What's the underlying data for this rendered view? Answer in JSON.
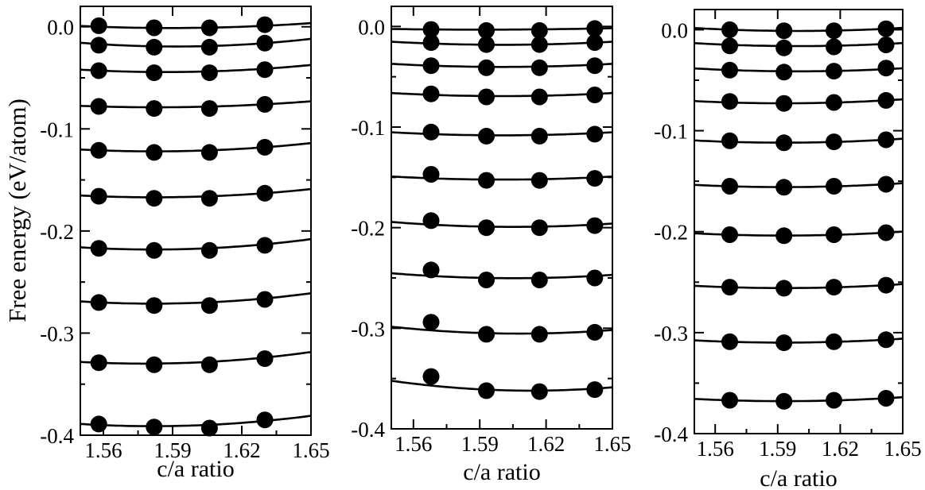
{
  "ylabel": "Free energy (eV/atom)",
  "panels": [
    {
      "xlabel": "c/a ratio",
      "xlim": [
        1.55,
        1.65
      ],
      "ylim": [
        -0.4,
        0.02
      ],
      "x_ticks": [
        1.56,
        1.59,
        1.62,
        1.65
      ],
      "x_tick_labels": [
        "1.56",
        "1.59",
        "1.62",
        "1.65"
      ],
      "y_ticks": [
        0.0,
        -0.1,
        -0.2,
        -0.3,
        -0.4
      ],
      "y_tick_labels": [
        "0.0",
        "-0.1",
        "-0.2",
        "-0.3",
        "-0.4"
      ]
    },
    {
      "xlabel": "c/a ratio",
      "xlim": [
        1.55,
        1.65
      ],
      "ylim": [
        -0.4,
        0.02
      ],
      "x_ticks": [
        1.56,
        1.59,
        1.62,
        1.65
      ],
      "x_tick_labels": [
        "1.56",
        "1.59",
        "1.62",
        "1.65"
      ],
      "y_ticks": [
        0.0,
        -0.1,
        -0.2,
        -0.3,
        -0.4
      ],
      "y_tick_labels": [
        "0.0",
        "-0.1",
        "-0.2",
        "-0.3",
        "-0.4"
      ]
    },
    {
      "xlabel": "c/a ratio",
      "xlim": [
        1.55,
        1.65
      ],
      "ylim": [
        -0.4,
        0.02
      ],
      "x_ticks": [
        1.56,
        1.59,
        1.62,
        1.65
      ],
      "x_tick_labels": [
        "1.56",
        "1.59",
        "1.62",
        "1.65"
      ],
      "y_ticks": [
        0.0,
        -0.1,
        -0.2,
        -0.3,
        -0.4
      ],
      "y_tick_labels": [
        "0.0",
        "-0.1",
        "-0.2",
        "-0.3",
        "-0.4"
      ]
    }
  ],
  "chart_data": [
    {
      "type": "scatter",
      "xlabel": "c/a ratio",
      "ylabel": "Free energy (eV/atom)",
      "xlim": [
        1.55,
        1.65
      ],
      "ylim": [
        -0.4,
        0.02
      ],
      "grid": false,
      "x": [
        1.558,
        1.582,
        1.606,
        1.63
      ],
      "series": [
        {
          "values": [
            0.001,
            -0.001,
            -0.001,
            0.002
          ],
          "fit": [
            0.0,
            -0.001,
            -0.001,
            0.001
          ]
        },
        {
          "values": [
            -0.018,
            -0.02,
            -0.02,
            -0.016
          ],
          "fit": [
            -0.017,
            -0.019,
            -0.019,
            -0.016
          ]
        },
        {
          "values": [
            -0.043,
            -0.045,
            -0.045,
            -0.042
          ],
          "fit": [
            -0.043,
            -0.044,
            -0.044,
            -0.041
          ]
        },
        {
          "values": [
            -0.078,
            -0.08,
            -0.08,
            -0.076
          ],
          "fit": [
            -0.078,
            -0.079,
            -0.078,
            -0.076
          ]
        },
        {
          "values": [
            -0.121,
            -0.123,
            -0.123,
            -0.118
          ],
          "fit": [
            -0.121,
            -0.122,
            -0.121,
            -0.118
          ]
        },
        {
          "values": [
            -0.166,
            -0.168,
            -0.168,
            -0.163
          ],
          "fit": [
            -0.166,
            -0.167,
            -0.166,
            -0.163
          ]
        },
        {
          "values": [
            -0.217,
            -0.219,
            -0.219,
            -0.214
          ],
          "fit": [
            -0.217,
            -0.218,
            -0.217,
            -0.213
          ]
        },
        {
          "values": [
            -0.27,
            -0.273,
            -0.273,
            -0.267
          ],
          "fit": [
            -0.27,
            -0.271,
            -0.27,
            -0.266
          ]
        },
        {
          "values": [
            -0.329,
            -0.331,
            -0.331,
            -0.325
          ],
          "fit": [
            -0.329,
            -0.33,
            -0.328,
            -0.324
          ]
        },
        {
          "values": [
            -0.389,
            -0.392,
            -0.393,
            -0.385
          ],
          "fit": [
            -0.39,
            -0.391,
            -0.39,
            -0.386
          ]
        }
      ]
    },
    {
      "type": "scatter",
      "xlabel": "c/a ratio",
      "ylabel": "",
      "xlim": [
        1.55,
        1.65
      ],
      "ylim": [
        -0.4,
        0.02
      ],
      "grid": false,
      "x": [
        1.568,
        1.593,
        1.617,
        1.642
      ],
      "series": [
        {
          "values": [
            -0.003,
            -0.004,
            -0.004,
            -0.002
          ],
          "fit": [
            -0.003,
            -0.003,
            -0.003,
            -0.002
          ]
        },
        {
          "values": [
            -0.016,
            -0.018,
            -0.018,
            -0.016
          ],
          "fit": [
            -0.017,
            -0.018,
            -0.018,
            -0.016
          ]
        },
        {
          "values": [
            -0.039,
            -0.041,
            -0.041,
            -0.039
          ],
          "fit": [
            -0.039,
            -0.04,
            -0.04,
            -0.038
          ]
        },
        {
          "values": [
            -0.067,
            -0.07,
            -0.07,
            -0.068
          ],
          "fit": [
            -0.068,
            -0.069,
            -0.069,
            -0.067
          ]
        },
        {
          "values": [
            -0.105,
            -0.109,
            -0.109,
            -0.107
          ],
          "fit": [
            -0.107,
            -0.108,
            -0.108,
            -0.106
          ]
        },
        {
          "values": [
            -0.147,
            -0.153,
            -0.153,
            -0.151
          ],
          "fit": [
            -0.151,
            -0.152,
            -0.152,
            -0.15
          ]
        },
        {
          "values": [
            -0.193,
            -0.2,
            -0.2,
            -0.198
          ],
          "fit": [
            -0.197,
            -0.199,
            -0.199,
            -0.197
          ]
        },
        {
          "values": [
            -0.242,
            -0.252,
            -0.252,
            -0.25
          ],
          "fit": [
            -0.248,
            -0.25,
            -0.25,
            -0.248
          ]
        },
        {
          "values": [
            -0.294,
            -0.306,
            -0.306,
            -0.304
          ],
          "fit": [
            -0.302,
            -0.305,
            -0.305,
            -0.303
          ]
        },
        {
          "values": [
            -0.348,
            -0.362,
            -0.363,
            -0.361
          ],
          "fit": [
            -0.357,
            -0.361,
            -0.362,
            -0.36
          ]
        }
      ]
    },
    {
      "type": "scatter",
      "xlabel": "c/a ratio",
      "ylabel": "",
      "xlim": [
        1.55,
        1.65
      ],
      "ylim": [
        -0.4,
        0.02
      ],
      "grid": false,
      "x": [
        1.567,
        1.593,
        1.617,
        1.642
      ],
      "series": [
        {
          "values": [
            0.0,
            -0.001,
            -0.001,
            0.001
          ],
          "fit": [
            0.0,
            -0.001,
            -0.001,
            0.001
          ]
        },
        {
          "values": [
            -0.016,
            -0.018,
            -0.017,
            -0.015
          ],
          "fit": [
            -0.015,
            -0.016,
            -0.016,
            -0.014
          ]
        },
        {
          "values": [
            -0.04,
            -0.042,
            -0.041,
            -0.038
          ],
          "fit": [
            -0.04,
            -0.041,
            -0.041,
            -0.039
          ]
        },
        {
          "values": [
            -0.071,
            -0.073,
            -0.072,
            -0.07
          ],
          "fit": [
            -0.072,
            -0.073,
            -0.072,
            -0.07
          ]
        },
        {
          "values": [
            -0.11,
            -0.112,
            -0.111,
            -0.109
          ],
          "fit": [
            -0.111,
            -0.112,
            -0.111,
            -0.109
          ]
        },
        {
          "values": [
            -0.155,
            -0.156,
            -0.155,
            -0.153
          ],
          "fit": [
            -0.155,
            -0.156,
            -0.155,
            -0.153
          ]
        },
        {
          "values": [
            -0.203,
            -0.204,
            -0.203,
            -0.201
          ],
          "fit": [
            -0.203,
            -0.204,
            -0.203,
            -0.201
          ]
        },
        {
          "values": [
            -0.255,
            -0.256,
            -0.255,
            -0.253
          ],
          "fit": [
            -0.255,
            -0.256,
            -0.255,
            -0.253
          ]
        },
        {
          "values": [
            -0.309,
            -0.31,
            -0.309,
            -0.307
          ],
          "fit": [
            -0.309,
            -0.31,
            -0.309,
            -0.307
          ]
        },
        {
          "values": [
            -0.367,
            -0.368,
            -0.367,
            -0.365
          ],
          "fit": [
            -0.367,
            -0.368,
            -0.367,
            -0.365
          ]
        }
      ]
    }
  ]
}
